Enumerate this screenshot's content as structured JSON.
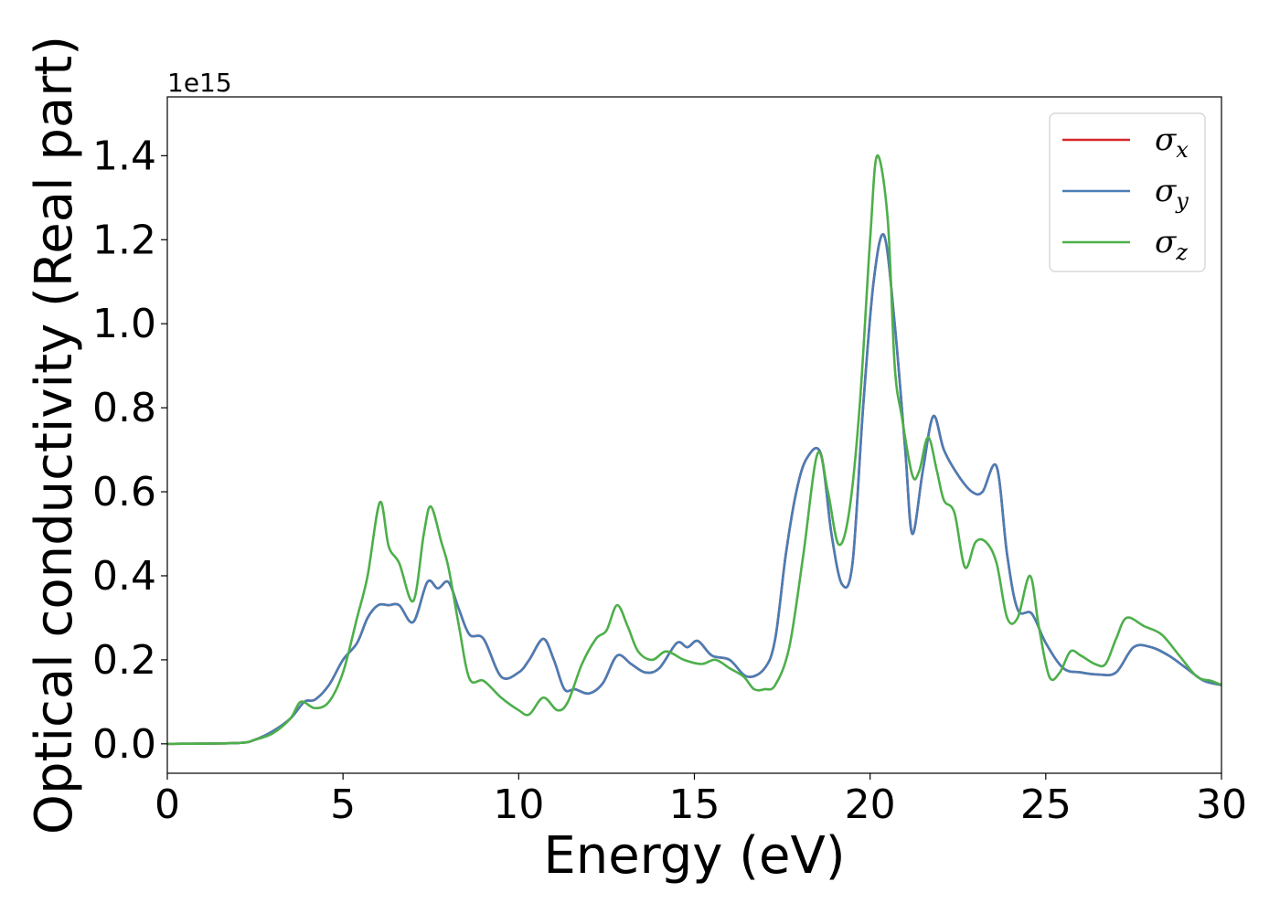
{
  "chart_data": {
    "type": "line",
    "xlabel": "Energy (eV)",
    "ylabel": "Optical conductivity (Real part)",
    "y_offset_label": "1e15",
    "xlim": [
      0,
      30
    ],
    "ylim": [
      -0.07,
      1.54
    ],
    "xticks": [
      0,
      5,
      10,
      15,
      20,
      25,
      30
    ],
    "xtick_labels": [
      "0",
      "5",
      "10",
      "15",
      "20",
      "25",
      "30"
    ],
    "yticks": [
      0.0,
      0.2,
      0.4,
      0.6,
      0.8,
      1.0,
      1.2,
      1.4
    ],
    "ytick_labels": [
      "0.0",
      "0.2",
      "0.4",
      "0.6",
      "0.8",
      "1.0",
      "1.2",
      "1.4"
    ],
    "grid": false,
    "legend_position": "top-right",
    "series": [
      {
        "name": "σx",
        "symbol": "σ",
        "subscript": "x",
        "color": "#d62728",
        "x": [
          0,
          2,
          2.5,
          3,
          3.5,
          3.9,
          4.2,
          4.6,
          5,
          5.4,
          5.7,
          6.0,
          6.3,
          6.6,
          7.0,
          7.4,
          7.7,
          8.0,
          8.3,
          8.6,
          9.0,
          9.5,
          10.0,
          10.3,
          10.7,
          11.0,
          11.3,
          11.6,
          12.0,
          12.4,
          12.8,
          13.2,
          13.6,
          14.0,
          14.5,
          14.8,
          15.1,
          15.5,
          16.0,
          16.5,
          17.0,
          17.3,
          17.6,
          17.9,
          18.2,
          18.6,
          18.9,
          19.2,
          19.5,
          19.8,
          20.1,
          20.4,
          20.7,
          21.0,
          21.2,
          21.5,
          21.8,
          22.1,
          22.5,
          22.9,
          23.2,
          23.6,
          23.9,
          24.2,
          24.6,
          25.0,
          25.5,
          26.0,
          26.5,
          27.0,
          27.5,
          28.0,
          28.5,
          29.0,
          29.5,
          30.0
        ],
        "y": [
          0.0,
          0.002,
          0.01,
          0.03,
          0.06,
          0.1,
          0.105,
          0.14,
          0.2,
          0.24,
          0.3,
          0.33,
          0.33,
          0.33,
          0.29,
          0.385,
          0.37,
          0.385,
          0.32,
          0.26,
          0.25,
          0.16,
          0.17,
          0.2,
          0.25,
          0.2,
          0.13,
          0.13,
          0.12,
          0.145,
          0.21,
          0.19,
          0.17,
          0.18,
          0.24,
          0.23,
          0.245,
          0.21,
          0.2,
          0.16,
          0.18,
          0.25,
          0.45,
          0.6,
          0.68,
          0.69,
          0.5,
          0.38,
          0.43,
          0.8,
          1.1,
          1.21,
          1.0,
          0.7,
          0.5,
          0.65,
          0.78,
          0.7,
          0.64,
          0.6,
          0.6,
          0.66,
          0.45,
          0.32,
          0.31,
          0.24,
          0.18,
          0.17,
          0.165,
          0.17,
          0.23,
          0.23,
          0.21,
          0.18,
          0.15,
          0.14
        ]
      },
      {
        "name": "σy",
        "symbol": "σ",
        "subscript": "y",
        "color": "#4a7db5",
        "x": [
          0,
          2,
          2.5,
          3,
          3.5,
          3.9,
          4.2,
          4.6,
          5,
          5.4,
          5.7,
          6.0,
          6.3,
          6.6,
          7.0,
          7.4,
          7.7,
          8.0,
          8.3,
          8.6,
          9.0,
          9.5,
          10.0,
          10.3,
          10.7,
          11.0,
          11.3,
          11.6,
          12.0,
          12.4,
          12.8,
          13.2,
          13.6,
          14.0,
          14.5,
          14.8,
          15.1,
          15.5,
          16.0,
          16.5,
          17.0,
          17.3,
          17.6,
          17.9,
          18.2,
          18.6,
          18.9,
          19.2,
          19.5,
          19.8,
          20.1,
          20.4,
          20.7,
          21.0,
          21.2,
          21.5,
          21.8,
          22.1,
          22.5,
          22.9,
          23.2,
          23.6,
          23.9,
          24.2,
          24.6,
          25.0,
          25.5,
          26.0,
          26.5,
          27.0,
          27.5,
          28.0,
          28.5,
          29.0,
          29.5,
          30.0
        ],
        "y": [
          0.0,
          0.002,
          0.01,
          0.03,
          0.06,
          0.1,
          0.105,
          0.14,
          0.2,
          0.24,
          0.3,
          0.33,
          0.33,
          0.33,
          0.29,
          0.385,
          0.37,
          0.385,
          0.32,
          0.26,
          0.25,
          0.16,
          0.17,
          0.2,
          0.25,
          0.2,
          0.13,
          0.13,
          0.12,
          0.145,
          0.21,
          0.19,
          0.17,
          0.18,
          0.24,
          0.23,
          0.245,
          0.21,
          0.2,
          0.16,
          0.18,
          0.25,
          0.45,
          0.6,
          0.68,
          0.69,
          0.5,
          0.38,
          0.43,
          0.8,
          1.1,
          1.21,
          1.0,
          0.7,
          0.5,
          0.65,
          0.78,
          0.7,
          0.64,
          0.6,
          0.6,
          0.66,
          0.45,
          0.32,
          0.31,
          0.24,
          0.18,
          0.17,
          0.165,
          0.17,
          0.23,
          0.23,
          0.21,
          0.18,
          0.15,
          0.14
        ]
      },
      {
        "name": "σz",
        "symbol": "σ",
        "subscript": "z",
        "color": "#4daf4a",
        "x": [
          0,
          2,
          2.5,
          3,
          3.5,
          3.8,
          4.2,
          4.6,
          5.0,
          5.4,
          5.7,
          6.05,
          6.3,
          6.6,
          7.0,
          7.3,
          7.5,
          7.8,
          8.0,
          8.3,
          8.6,
          9.0,
          9.5,
          10.0,
          10.3,
          10.7,
          11.1,
          11.4,
          11.8,
          12.2,
          12.5,
          12.8,
          13.1,
          13.4,
          13.8,
          14.2,
          14.7,
          15.2,
          15.6,
          16.0,
          16.4,
          16.7,
          17.0,
          17.3,
          17.7,
          18.1,
          18.5,
          18.8,
          19.1,
          19.4,
          19.7,
          20.0,
          20.2,
          20.5,
          20.7,
          20.9,
          21.2,
          21.4,
          21.65,
          21.9,
          22.1,
          22.4,
          22.7,
          23.0,
          23.3,
          23.6,
          23.9,
          24.2,
          24.55,
          24.8,
          25.1,
          25.4,
          25.7,
          26.0,
          26.4,
          26.7,
          27.0,
          27.3,
          27.8,
          28.3,
          28.8,
          29.3,
          29.7,
          30.0
        ],
        "y": [
          0.0,
          0.002,
          0.01,
          0.025,
          0.06,
          0.1,
          0.085,
          0.1,
          0.17,
          0.3,
          0.4,
          0.575,
          0.47,
          0.43,
          0.34,
          0.5,
          0.565,
          0.48,
          0.42,
          0.28,
          0.155,
          0.15,
          0.11,
          0.08,
          0.07,
          0.11,
          0.08,
          0.1,
          0.19,
          0.25,
          0.27,
          0.33,
          0.28,
          0.22,
          0.2,
          0.22,
          0.2,
          0.19,
          0.2,
          0.18,
          0.16,
          0.13,
          0.13,
          0.14,
          0.23,
          0.45,
          0.69,
          0.6,
          0.475,
          0.55,
          0.8,
          1.2,
          1.4,
          1.25,
          0.9,
          0.78,
          0.64,
          0.65,
          0.73,
          0.65,
          0.58,
          0.55,
          0.42,
          0.48,
          0.48,
          0.43,
          0.3,
          0.3,
          0.4,
          0.28,
          0.16,
          0.17,
          0.22,
          0.21,
          0.19,
          0.19,
          0.25,
          0.3,
          0.28,
          0.26,
          0.21,
          0.16,
          0.15,
          0.14
        ]
      }
    ]
  }
}
